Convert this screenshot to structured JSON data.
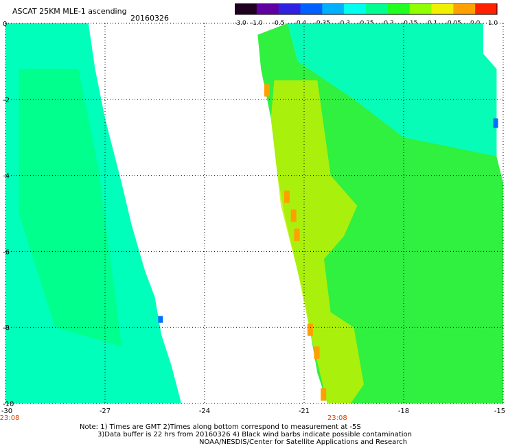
{
  "header": {
    "title": "ASCAT 25KM MLE-1 ascending",
    "date": "20160326"
  },
  "colorbar": {
    "labels": [
      "-3.0",
      "-1.0",
      "-0.5",
      "-0.4",
      "-0.35",
      "-0.3",
      "-0.25",
      "-0.2",
      "-0.15",
      "-0.1",
      "-0.05",
      "0.0",
      "1.0"
    ],
    "colors": [
      "#200020",
      "#6000a0",
      "#3020e0",
      "#0060ff",
      "#00b0ff",
      "#00ffee",
      "#00ff90",
      "#20ff20",
      "#90ff00",
      "#f0f000",
      "#ffa000",
      "#ff2000"
    ]
  },
  "map": {
    "x_ticks": [
      "-30",
      "-27",
      "-24",
      "-21",
      "-18",
      "-15"
    ],
    "y_ticks": [
      "0",
      "-2",
      "-4",
      "-6",
      "-8",
      "-10"
    ],
    "time_labels": [
      "23:08",
      "23:08"
    ],
    "time_color": "#e04000",
    "lon_range": [
      -30,
      -15
    ],
    "lat_range": [
      -10,
      0
    ],
    "west_swath_color": "#00ffbb",
    "east_swath_color": "#30f040",
    "gridlines": "dotted"
  },
  "notes": {
    "line1": "Note: 1) Times are GMT 2)Times along bottom correspond to measurement at -5S",
    "line2": "3)Data buffer is 22 hrs from 20160326 4) Black wind barbs indicate possible contamination",
    "line3": "NOAA/NESDIS/Center for Satellite Applications and Research"
  }
}
